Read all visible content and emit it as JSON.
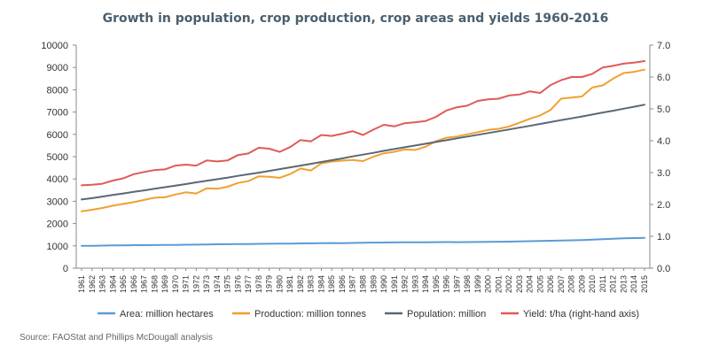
{
  "chart_data": {
    "type": "line",
    "title": "Growth in population, crop production, crop areas and yields 1960-2016",
    "source": "Source: FAOStat and Phillips McDougall analysis",
    "x": [
      1961,
      1962,
      1963,
      1964,
      1965,
      1966,
      1967,
      1968,
      1969,
      1970,
      1971,
      1972,
      1973,
      1974,
      1975,
      1976,
      1977,
      1978,
      1979,
      1980,
      1981,
      1982,
      1983,
      1984,
      1985,
      1986,
      1987,
      1988,
      1989,
      1990,
      1991,
      1992,
      1993,
      1994,
      1995,
      1996,
      1997,
      1998,
      1999,
      2000,
      2001,
      2002,
      2003,
      2004,
      2005,
      2006,
      2007,
      2008,
      2009,
      2010,
      2011,
      2012,
      2013,
      2014,
      2015
    ],
    "x_tick_labels": [
      "1961",
      "1962",
      "1963",
      "1964",
      "1965",
      "1966",
      "1967",
      "1968",
      "1969",
      "1970",
      "1971",
      "1972",
      "1973",
      "1974",
      "1975",
      "1976",
      "1977",
      "1978",
      "1979",
      "1980",
      "1981",
      "1982",
      "1983",
      "1984",
      "1985",
      "1986",
      "1987",
      "1988",
      "1989",
      "1990",
      "1991",
      "1992",
      "1993",
      "1994",
      "1995",
      "1996",
      "1997",
      "1998",
      "1999",
      "2000",
      "2001",
      "2002",
      "2003",
      "2004",
      "2005",
      "2006",
      "2007",
      "2008",
      "2009",
      "2010",
      "2011",
      "2012",
      "2013",
      "2014",
      "2015"
    ],
    "y_left": {
      "ylim": [
        0,
        10000
      ],
      "ticks": [
        "0",
        "1000",
        "2000",
        "3000",
        "4000",
        "5000",
        "6000",
        "7000",
        "8000",
        "9000",
        "10000"
      ]
    },
    "y_right": {
      "ylim": [
        0,
        7
      ],
      "ticks": [
        "0.0",
        "1.0",
        "2.0",
        "3.0",
        "4.0",
        "5.0",
        "6.0",
        "7.0"
      ]
    },
    "grid": false,
    "legend_position": "bottom",
    "series": [
      {
        "name": "Area: million hectares",
        "axis": "left",
        "color": "#5b9bd5",
        "values": [
          1000,
          1005,
          1010,
          1020,
          1025,
          1030,
          1030,
          1035,
          1040,
          1045,
          1050,
          1055,
          1065,
          1070,
          1075,
          1080,
          1085,
          1090,
          1095,
          1100,
          1105,
          1110,
          1115,
          1120,
          1125,
          1120,
          1130,
          1140,
          1145,
          1150,
          1155,
          1160,
          1160,
          1160,
          1165,
          1170,
          1165,
          1170,
          1175,
          1180,
          1185,
          1190,
          1200,
          1210,
          1220,
          1230,
          1240,
          1250,
          1260,
          1280,
          1300,
          1320,
          1340,
          1350,
          1360
        ]
      },
      {
        "name": "Production: million tonnes",
        "axis": "left",
        "color": "#f0a030",
        "values": [
          2550,
          2620,
          2700,
          2800,
          2880,
          2960,
          3060,
          3160,
          3180,
          3300,
          3400,
          3350,
          3580,
          3560,
          3650,
          3820,
          3900,
          4120,
          4100,
          4050,
          4220,
          4470,
          4380,
          4700,
          4780,
          4820,
          4850,
          4800,
          5000,
          5150,
          5220,
          5320,
          5300,
          5450,
          5700,
          5850,
          5900,
          6000,
          6100,
          6200,
          6250,
          6350,
          6520,
          6700,
          6850,
          7100,
          7600,
          7650,
          7700,
          8100,
          8200,
          8500,
          8750,
          8800,
          8900
        ]
      },
      {
        "name": "Population: million",
        "axis": "left",
        "color": "#5a6874",
        "values": [
          3080,
          3140,
          3210,
          3280,
          3350,
          3420,
          3490,
          3560,
          3630,
          3700,
          3770,
          3850,
          3920,
          3990,
          4060,
          4140,
          4210,
          4280,
          4360,
          4440,
          4520,
          4600,
          4680,
          4760,
          4840,
          4920,
          5010,
          5090,
          5170,
          5260,
          5340,
          5420,
          5500,
          5580,
          5660,
          5740,
          5820,
          5900,
          5980,
          6060,
          6140,
          6220,
          6300,
          6380,
          6470,
          6550,
          6640,
          6720,
          6800,
          6890,
          6980,
          7060,
          7150,
          7240,
          7330
        ]
      },
      {
        "name": "Yield: t/ha (right-hand axis)",
        "axis": "right",
        "color": "#e05a58",
        "values": [
          2.6,
          2.62,
          2.65,
          2.75,
          2.82,
          2.95,
          3.02,
          3.08,
          3.1,
          3.22,
          3.25,
          3.22,
          3.38,
          3.35,
          3.38,
          3.55,
          3.6,
          3.78,
          3.75,
          3.65,
          3.8,
          4.02,
          3.98,
          4.18,
          4.15,
          4.22,
          4.3,
          4.18,
          4.35,
          4.5,
          4.45,
          4.55,
          4.58,
          4.62,
          4.75,
          4.95,
          5.05,
          5.1,
          5.25,
          5.3,
          5.32,
          5.42,
          5.45,
          5.55,
          5.5,
          5.75,
          5.9,
          6.0,
          6.0,
          6.1,
          6.3,
          6.35,
          6.42,
          6.45,
          6.5
        ]
      }
    ]
  }
}
